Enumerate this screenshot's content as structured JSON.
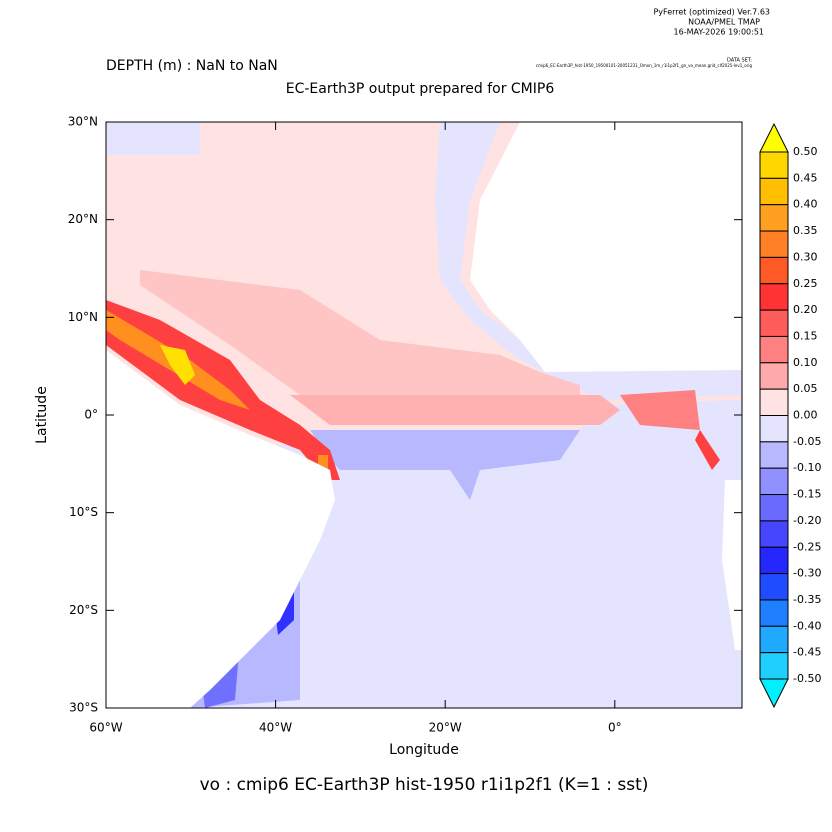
{
  "header": {
    "software": "PyFerret (optimized) Ver.7.63",
    "institution": "NOAA/PMEL TMAP",
    "date": "16-MAY-2026 19:00:51",
    "dataset_heading": "DATA SET:",
    "dataset": "cmip6_EC-Earth3P_hist-1950_19500101-20051231_Omon_1m_r1i1p2f1_gn_vo_mean.grid_clf2025-lev1_orig"
  },
  "chart_data": {
    "type": "map",
    "title": "DEPTH (m) : NaN to NaN",
    "subtitle": "EC-Earth3P output prepared for CMIP6",
    "xlabel": "Longitude",
    "ylabel": "Latitude",
    "footer": "vo : cmip6 EC-Earth3P hist-1950 r1i1p2f1   (K=1 : sst)",
    "xlim": [
      -60,
      15
    ],
    "ylim": [
      -30,
      30
    ],
    "xticks": [
      {
        "value": -60,
        "label": "60°W"
      },
      {
        "value": -40,
        "label": "40°W"
      },
      {
        "value": -20,
        "label": "20°W"
      },
      {
        "value": 0,
        "label": "0°"
      }
    ],
    "yticks": [
      {
        "value": 30,
        "label": "30°N"
      },
      {
        "value": 20,
        "label": "20°N"
      },
      {
        "value": 10,
        "label": "10°N"
      },
      {
        "value": 0,
        "label": "0°"
      },
      {
        "value": -10,
        "label": "10°S"
      },
      {
        "value": -20,
        "label": "20°S"
      },
      {
        "value": -30,
        "label": "30°S"
      }
    ],
    "colorbar": {
      "levels": [
        {
          "value": 0.5,
          "label": "0.50"
        },
        {
          "value": 0.45,
          "label": "0.45"
        },
        {
          "value": 0.4,
          "label": "0.40"
        },
        {
          "value": 0.35,
          "label": "0.35"
        },
        {
          "value": 0.3,
          "label": "0.30"
        },
        {
          "value": 0.25,
          "label": "0.25"
        },
        {
          "value": 0.2,
          "label": "0.20"
        },
        {
          "value": 0.15,
          "label": "0.15"
        },
        {
          "value": 0.1,
          "label": "0.10"
        },
        {
          "value": 0.05,
          "label": "0.05"
        },
        {
          "value": 0,
          "label": "0.00"
        },
        {
          "value": -0.05,
          "label": "-0.05"
        },
        {
          "value": -0.1,
          "label": "-0.10"
        },
        {
          "value": -0.15,
          "label": "-0.15"
        },
        {
          "value": -0.2,
          "label": "-0.20"
        },
        {
          "value": -0.25,
          "label": "-0.25"
        },
        {
          "value": -0.3,
          "label": "-0.30"
        },
        {
          "value": -0.35,
          "label": "-0.35"
        },
        {
          "value": -0.4,
          "label": "-0.40"
        },
        {
          "value": -0.45,
          "label": "-0.45"
        },
        {
          "value": -0.5,
          "label": "-0.50"
        }
      ],
      "colors": [
        "#ffff00",
        "#ffd700",
        "#ffbf00",
        "#ffa020",
        "#ff8026",
        "#ff5a26",
        "#ff3333",
        "#ff5c5c",
        "#ff8080",
        "#ffaaaa",
        "#ffe2e2",
        "#e4e4ff",
        "#b8b8ff",
        "#9090ff",
        "#6a6aff",
        "#4646ff",
        "#2626ff",
        "#1f4cff",
        "#1f80ff",
        "#1faaff",
        "#1fd0ff",
        "#00f0ff"
      ]
    }
  }
}
